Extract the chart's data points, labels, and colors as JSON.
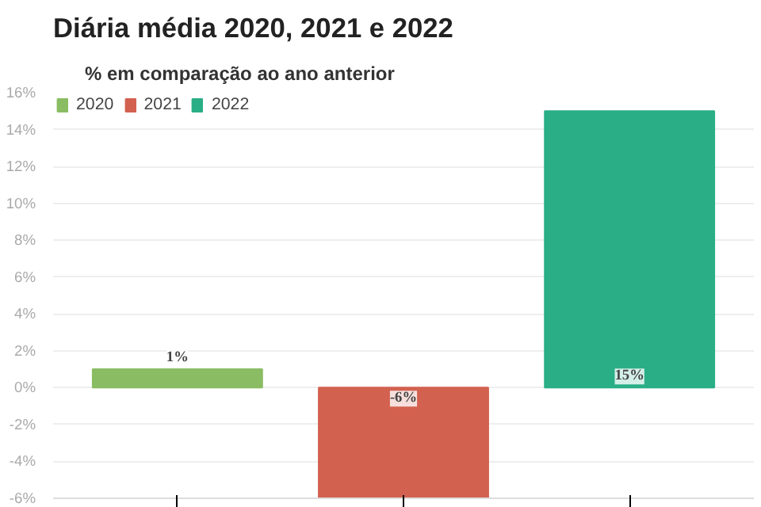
{
  "chart_data": {
    "type": "bar",
    "title": "Diária média 2020, 2021 e 2022",
    "subtitle": "% em comparação ao ano anterior",
    "categories": [
      null,
      null,
      null
    ],
    "series": [
      {
        "name": "2020",
        "color": "#8abd63",
        "values": [
          1,
          null,
          null
        ],
        "value_labels": [
          "1%",
          null,
          null
        ]
      },
      {
        "name": "2021",
        "color": "#d36150",
        "values": [
          null,
          -6,
          null
        ],
        "value_labels": [
          null,
          "-6%",
          null
        ]
      },
      {
        "name": "2022",
        "color": "#2aae86",
        "values": [
          null,
          null,
          15
        ],
        "value_labels": [
          null,
          null,
          "15%"
        ]
      }
    ],
    "ylim": [
      -6,
      16
    ],
    "yticks": [
      {
        "value": -6,
        "label": "-6%"
      },
      {
        "value": -4,
        "label": "-4%"
      },
      {
        "value": -2,
        "label": "-2%"
      },
      {
        "value": 0,
        "label": "0%"
      },
      {
        "value": 2,
        "label": "2%"
      },
      {
        "value": 4,
        "label": "4%"
      },
      {
        "value": 6,
        "label": "6%"
      },
      {
        "value": 8,
        "label": "8%"
      },
      {
        "value": 10,
        "label": "10%"
      },
      {
        "value": 12,
        "label": "12%"
      },
      {
        "value": 14,
        "label": "14%"
      },
      {
        "value": 16,
        "label": "16%"
      }
    ],
    "grid": "y",
    "legend": "top left"
  }
}
